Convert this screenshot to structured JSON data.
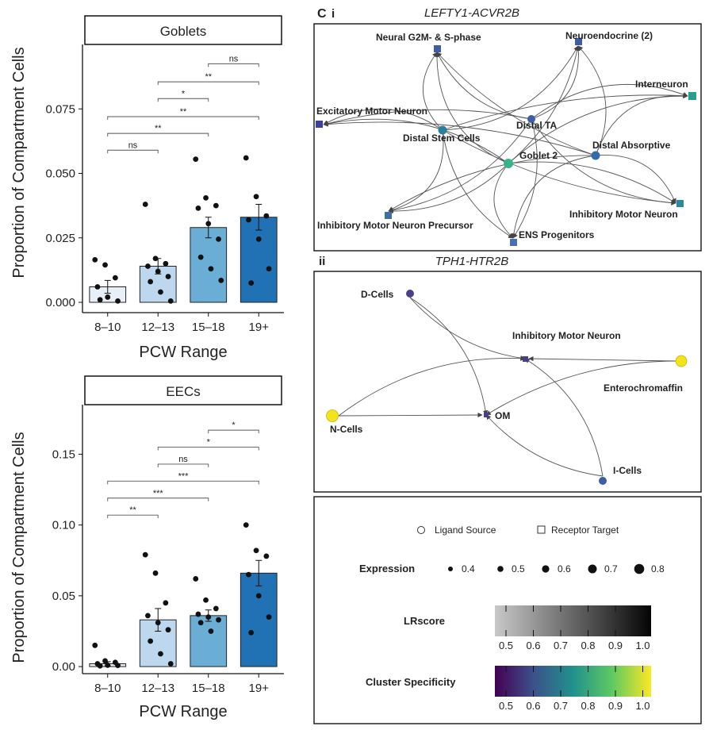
{
  "panel_c": {
    "letter": "C",
    "sub_i": "i",
    "sub_ii": "ii"
  },
  "colors": {
    "bar_8_10": "#e7eff8",
    "bar_12_13": "#bdd7ee",
    "bar_15_18": "#6aaed6",
    "bar_19p": "#2171b5",
    "node_blue": "#3d5da6",
    "node_teal": "#2a9d8f",
    "node_green": "#37b38c",
    "node_purple": "#4b3f8c",
    "node_yellow": "#f2e31f"
  },
  "chart_data": [
    {
      "type": "bar",
      "title": "Goblets",
      "xlabel": "PCW Range",
      "ylabel": "Proportion of Compartment Cells",
      "categories": [
        "8–10",
        "12–13",
        "15–18",
        "19+"
      ],
      "values": [
        0.006,
        0.014,
        0.029,
        0.033
      ],
      "errors": [
        0.0025,
        0.003,
        0.004,
        0.005
      ],
      "ylim": [
        -0.004,
        0.1
      ],
      "yticks": [
        "0.000",
        "0.025",
        "0.050",
        "0.075"
      ],
      "ytick_values": [
        0,
        0.025,
        0.05,
        0.075
      ],
      "points": [
        [
          0.0165,
          0.0145,
          0.0095,
          0.006,
          0.002,
          0.0005,
          0.001
        ],
        [
          0.038,
          0.017,
          0.015,
          0.014,
          0.012,
          0.01,
          0.008,
          0.004,
          0.0005
        ],
        [
          0.0555,
          0.0405,
          0.0375,
          0.0365,
          0.0305,
          0.0245,
          0.0175,
          0.013,
          0.0085
        ],
        [
          0.056,
          0.041,
          0.0335,
          0.032,
          0.0245,
          0.013,
          0.0075
        ]
      ],
      "comparisons": [
        {
          "from": 2,
          "to": 3,
          "label": "ns",
          "level": 0.0925
        },
        {
          "from": 1,
          "to": 3,
          "label": "**",
          "level": 0.0855
        },
        {
          "from": 1,
          "to": 2,
          "label": "*",
          "level": 0.079
        },
        {
          "from": 0,
          "to": 3,
          "label": "**",
          "level": 0.072
        },
        {
          "from": 0,
          "to": 2,
          "label": "**",
          "level": 0.0655
        },
        {
          "from": 0,
          "to": 1,
          "label": "ns",
          "level": 0.059
        }
      ]
    },
    {
      "type": "bar",
      "title": "EECs",
      "xlabel": "PCW Range",
      "ylabel": "Proportion of Compartment Cells",
      "categories": [
        "8–10",
        "12–13",
        "15–18",
        "19+"
      ],
      "values": [
        0.002,
        0.033,
        0.036,
        0.066
      ],
      "errors": [
        0.0015,
        0.008,
        0.004,
        0.009
      ],
      "ylim": [
        -0.005,
        0.185
      ],
      "yticks": [
        "0.00",
        "0.05",
        "0.10",
        "0.15"
      ],
      "ytick_values": [
        0,
        0.05,
        0.1,
        0.15
      ],
      "points": [
        [
          0.015,
          0.004,
          0.003,
          0.002,
          0.001,
          0.0008,
          0.0005
        ],
        [
          0.079,
          0.066,
          0.045,
          0.036,
          0.031,
          0.026,
          0.018,
          0.009,
          0.002
        ],
        [
          0.062,
          0.047,
          0.041,
          0.037,
          0.035,
          0.033,
          0.031,
          0.025
        ],
        [
          0.1,
          0.082,
          0.078,
          0.065,
          0.05,
          0.035,
          0.024
        ]
      ],
      "comparisons": [
        {
          "from": 2,
          "to": 3,
          "label": "*",
          "level": 0.167
        },
        {
          "from": 1,
          "to": 3,
          "label": "*",
          "level": 0.155
        },
        {
          "from": 1,
          "to": 2,
          "label": "ns",
          "level": 0.143
        },
        {
          "from": 0,
          "to": 3,
          "label": "***",
          "level": 0.131
        },
        {
          "from": 0,
          "to": 2,
          "label": "***",
          "level": 0.119
        },
        {
          "from": 0,
          "to": 1,
          "label": "**",
          "level": 0.107
        }
      ]
    }
  ],
  "network_i": {
    "title": "LEFTY1-ACVR2B",
    "nodes": [
      {
        "id": "neural",
        "label": "Neural G2M- & S-phase",
        "shape": "square",
        "color": "#3d5da6"
      },
      {
        "id": "neuroendo",
        "label": "Neuroendocrine (2)",
        "shape": "square",
        "color": "#3d5da6"
      },
      {
        "id": "interneuron",
        "label": "Interneuron",
        "shape": "square",
        "color": "#2a9d8f"
      },
      {
        "id": "excitatory",
        "label": "Excitatory Motor Neuron",
        "shape": "square",
        "color": "#3d3f9c"
      },
      {
        "id": "distalta",
        "label": "Distal TA",
        "shape": "circle",
        "color": "#3d5da6"
      },
      {
        "id": "distalstem",
        "label": "Distal Stem Cells",
        "shape": "circle",
        "color": "#2a7f9a"
      },
      {
        "id": "goblet2",
        "label": "Goblet 2",
        "shape": "circle",
        "color": "#37b38c"
      },
      {
        "id": "distalabs",
        "label": "Distal Absorptive",
        "shape": "circle",
        "color": "#2f6ea8"
      },
      {
        "id": "inhibprec",
        "label": "Inhibitory Motor Neuron Precursor",
        "shape": "square",
        "color": "#3d6ea6"
      },
      {
        "id": "inhibmn",
        "label": "Inhibitory Motor Neuron",
        "shape": "square",
        "color": "#2a8a9a"
      },
      {
        "id": "ensprog",
        "label": "ENS Progenitors",
        "shape": "square",
        "color": "#4a6fb8"
      }
    ]
  },
  "network_ii": {
    "title": "TPH1-HTR2B",
    "nodes": [
      {
        "id": "dcells",
        "label": "D-Cells",
        "shape": "circle",
        "color": "#4b3f8c"
      },
      {
        "id": "imn",
        "label": "Inhibitory Motor Neuron",
        "shape": "square",
        "color": "#4b3f8c"
      },
      {
        "id": "entero",
        "label": "Enterochromaffin",
        "shape": "circle",
        "color": "#f2e31f"
      },
      {
        "id": "ncells",
        "label": "N-Cells",
        "shape": "circle",
        "color": "#f2e31f"
      },
      {
        "id": "om",
        "label": "OM",
        "shape": "square",
        "color": "#4b3f8c"
      },
      {
        "id": "icells",
        "label": "I-Cells",
        "shape": "circle",
        "color": "#3d5da6"
      }
    ]
  },
  "legend": {
    "ligand": "Ligand Source",
    "receptor": "Receptor Target",
    "expression_title": "Expression",
    "expression_values": [
      "0.4",
      "0.5",
      "0.6",
      "0.7",
      "0.8"
    ],
    "lrscore_title": "LRscore",
    "lrscore_ticks": [
      "0.5",
      "0.6",
      "0.7",
      "0.8",
      "0.9",
      "1.0"
    ],
    "specificity_title": "Cluster Specificity",
    "specificity_ticks": [
      "0.5",
      "0.6",
      "0.7",
      "0.8",
      "0.9",
      "1.0"
    ]
  }
}
